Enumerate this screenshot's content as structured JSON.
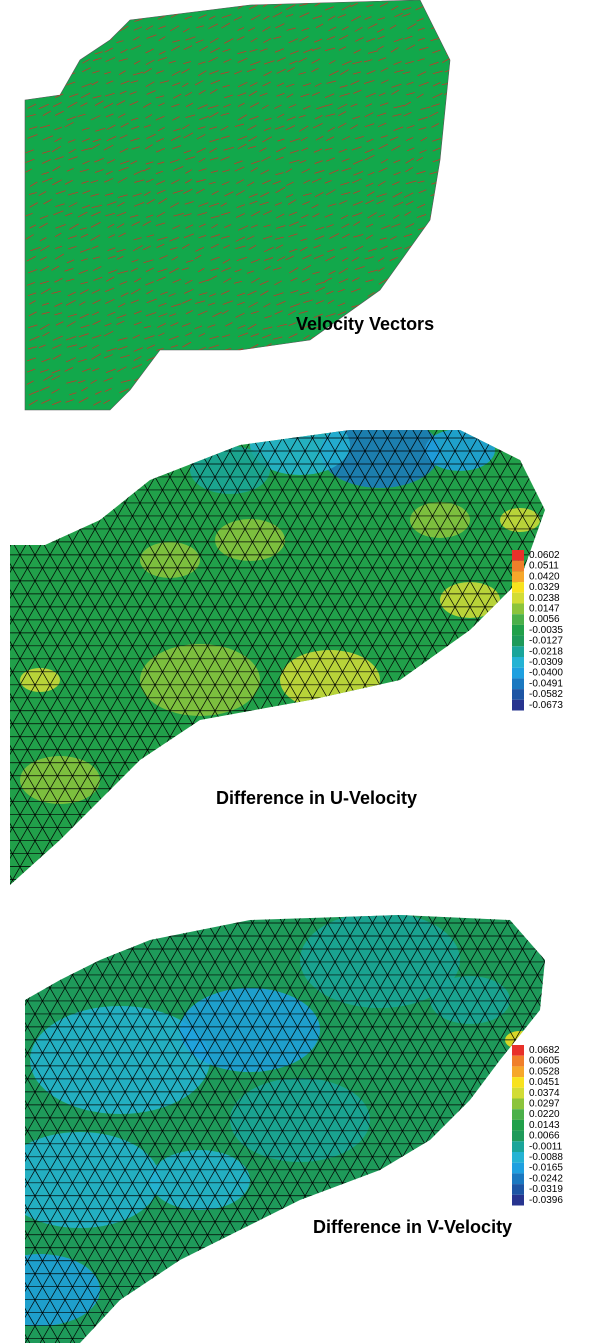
{
  "panels": [
    {
      "title": "Velocity Vectors"
    },
    {
      "title": "Difference in U-Velocity",
      "legend": {
        "labels": [
          "0.0602",
          "0.0511",
          "0.0420",
          "0.0329",
          "0.0238",
          "0.0147",
          "0.0056",
          "-0.0035",
          "-0.0127",
          "-0.0218",
          "-0.0309",
          "-0.0400",
          "-0.0491",
          "-0.0582",
          "-0.0673"
        ],
        "colors": [
          "#e8312a",
          "#f07f2a",
          "#f6a72a",
          "#f8e21e",
          "#d2dc36",
          "#8cc43c",
          "#4bb04a",
          "#21a04a",
          "#1e9a5a",
          "#1aa59a",
          "#25b3d4",
          "#1fa0e0",
          "#1b78c0",
          "#1d55a4",
          "#27348f"
        ]
      }
    },
    {
      "title": "Difference in V-Velocity",
      "legend": {
        "labels": [
          "0.0682",
          "0.0605",
          "0.0528",
          "0.0451",
          "0.0374",
          "0.0297",
          "0.0220",
          "0.0143",
          "0.0066",
          "-0.0011",
          "-0.0088",
          "-0.0165",
          "-0.0242",
          "-0.0319",
          "-0.0396"
        ],
        "colors": [
          "#e8312a",
          "#f07f2a",
          "#f6a72a",
          "#f8e21e",
          "#d2dc36",
          "#8cc43c",
          "#4bb04a",
          "#21a04a",
          "#1e9a5a",
          "#1aa59a",
          "#25b3d4",
          "#1fa0e0",
          "#1b78c0",
          "#1d55a4",
          "#27348f"
        ]
      }
    }
  ]
}
